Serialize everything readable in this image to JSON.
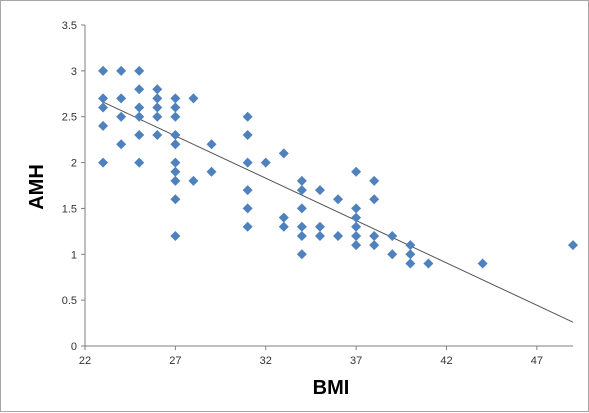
{
  "chart_data": {
    "type": "scatter",
    "xlabel": "BMI",
    "ylabel": "AMH",
    "xlim": [
      22,
      49
    ],
    "ylim": [
      0,
      3.5
    ],
    "xticks": [
      "22",
      "27",
      "32",
      "37",
      "42",
      "47"
    ],
    "yticks": [
      "0",
      "0.5",
      "1",
      "1.5",
      "2",
      "2.5",
      "3",
      "3.5"
    ],
    "grid": false,
    "marker_color": "#4f81bd",
    "trendline_color": "#555555",
    "trendline": {
      "x": [
        23,
        49
      ],
      "y": [
        2.66,
        0.26
      ]
    },
    "points": [
      {
        "x": 23,
        "y": 3.0
      },
      {
        "x": 24,
        "y": 3.0
      },
      {
        "x": 25,
        "y": 3.0
      },
      {
        "x": 23,
        "y": 2.7
      },
      {
        "x": 24,
        "y": 2.7
      },
      {
        "x": 23,
        "y": 2.6
      },
      {
        "x": 23,
        "y": 2.4
      },
      {
        "x": 23,
        "y": 2.0
      },
      {
        "x": 24,
        "y": 2.5
      },
      {
        "x": 24,
        "y": 2.2
      },
      {
        "x": 25,
        "y": 2.8
      },
      {
        "x": 25,
        "y": 2.6
      },
      {
        "x": 25,
        "y": 2.5
      },
      {
        "x": 25,
        "y": 2.3
      },
      {
        "x": 25,
        "y": 2.0
      },
      {
        "x": 26,
        "y": 2.8
      },
      {
        "x": 26,
        "y": 2.7
      },
      {
        "x": 26,
        "y": 2.6
      },
      {
        "x": 26,
        "y": 2.5
      },
      {
        "x": 26,
        "y": 2.3
      },
      {
        "x": 27,
        "y": 2.7
      },
      {
        "x": 27,
        "y": 2.6
      },
      {
        "x": 27,
        "y": 2.5
      },
      {
        "x": 27,
        "y": 2.3
      },
      {
        "x": 27,
        "y": 2.2
      },
      {
        "x": 27,
        "y": 2.0
      },
      {
        "x": 27,
        "y": 1.9
      },
      {
        "x": 27,
        "y": 1.8
      },
      {
        "x": 27,
        "y": 1.6
      },
      {
        "x": 27,
        "y": 1.2
      },
      {
        "x": 28,
        "y": 2.7
      },
      {
        "x": 28,
        "y": 1.8
      },
      {
        "x": 29,
        "y": 2.2
      },
      {
        "x": 29,
        "y": 1.9
      },
      {
        "x": 31,
        "y": 2.5
      },
      {
        "x": 31,
        "y": 2.3
      },
      {
        "x": 31,
        "y": 2.0
      },
      {
        "x": 31,
        "y": 1.7
      },
      {
        "x": 31,
        "y": 1.5
      },
      {
        "x": 31,
        "y": 1.3
      },
      {
        "x": 32,
        "y": 2.0
      },
      {
        "x": 33,
        "y": 2.1
      },
      {
        "x": 33,
        "y": 1.4
      },
      {
        "x": 33,
        "y": 1.3
      },
      {
        "x": 34,
        "y": 1.8
      },
      {
        "x": 34,
        "y": 1.7
      },
      {
        "x": 34,
        "y": 1.5
      },
      {
        "x": 34,
        "y": 1.3
      },
      {
        "x": 34,
        "y": 1.2
      },
      {
        "x": 34,
        "y": 1.0
      },
      {
        "x": 35,
        "y": 1.7
      },
      {
        "x": 35,
        "y": 1.3
      },
      {
        "x": 35,
        "y": 1.2
      },
      {
        "x": 36,
        "y": 1.6
      },
      {
        "x": 36,
        "y": 1.2
      },
      {
        "x": 37,
        "y": 1.9
      },
      {
        "x": 37,
        "y": 1.5
      },
      {
        "x": 37,
        "y": 1.4
      },
      {
        "x": 37,
        "y": 1.3
      },
      {
        "x": 37,
        "y": 1.2
      },
      {
        "x": 37,
        "y": 1.1
      },
      {
        "x": 38,
        "y": 1.8
      },
      {
        "x": 38,
        "y": 1.6
      },
      {
        "x": 38,
        "y": 1.2
      },
      {
        "x": 38,
        "y": 1.1
      },
      {
        "x": 39,
        "y": 1.2
      },
      {
        "x": 39,
        "y": 1.0
      },
      {
        "x": 40,
        "y": 1.1
      },
      {
        "x": 40,
        "y": 1.0
      },
      {
        "x": 40,
        "y": 0.9
      },
      {
        "x": 41,
        "y": 0.9
      },
      {
        "x": 44,
        "y": 0.9
      },
      {
        "x": 49,
        "y": 1.1
      }
    ]
  }
}
